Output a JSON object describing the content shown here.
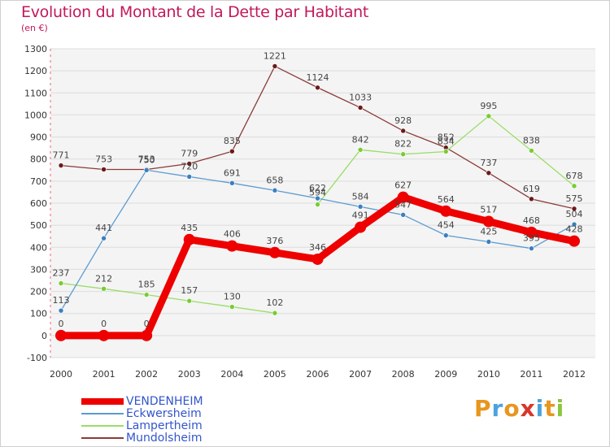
{
  "title": "Evolution du Montant de la Dette par Habitant",
  "subtitle": "(en €)",
  "logo": {
    "text": "Proxiti",
    "colors": [
      "#e8961e",
      "#4aa3df",
      "#e8961e",
      "#d9352a",
      "#4aa3df",
      "#e8961e",
      "#8cc63f"
    ]
  },
  "chart_data": {
    "type": "line",
    "title": "Evolution du Montant de la Dette par Habitant",
    "subtitle": "(en €)",
    "x": [
      "2000",
      "2001",
      "2002",
      "2003",
      "2004",
      "2005",
      "2006",
      "2007",
      "2008",
      "2009",
      "2010",
      "2011",
      "2012"
    ],
    "ylim": [
      -100,
      1300
    ],
    "yticks": [
      "-100",
      "0",
      "100",
      "200",
      "300",
      "400",
      "500",
      "600",
      "700",
      "800",
      "900",
      "1000",
      "1100",
      "1200",
      "1300"
    ],
    "grid": "horizontal",
    "legend": "bottom-left",
    "series": [
      {
        "name": "VENDENHEIM",
        "color": "#ee0000",
        "highlight": true,
        "values": [
          0,
          0,
          0,
          435,
          406,
          376,
          346,
          491,
          627,
          564,
          517,
          468,
          428
        ],
        "labels": [
          "0",
          "0",
          "0",
          "435",
          "406",
          "376",
          "346",
          "491",
          "627",
          "564",
          "517",
          "468",
          "428"
        ]
      },
      {
        "name": "Eckwersheim",
        "color": "#5c9bd1",
        "marker": "#3a7fc1",
        "values": [
          113,
          441,
          750,
          720,
          691,
          658,
          622,
          584,
          547,
          454,
          425,
          395,
          504
        ],
        "labels": [
          "113",
          "441",
          "750",
          "720",
          "691",
          "658",
          "622",
          "584",
          "547",
          "454",
          "425",
          "395",
          "504"
        ]
      },
      {
        "name": "Lampertheim",
        "color": "#99dd66",
        "marker": "#77cc33",
        "values": [
          237,
          212,
          185,
          157,
          130,
          102,
          null,
          842,
          822,
          834,
          995,
          838,
          678
        ],
        "labels": [
          "237",
          "212",
          "185",
          "157",
          "130",
          "102",
          "",
          "842",
          "822",
          "834",
          "995",
          "838",
          "678"
        ],
        "segment2": {
          "from": 594,
          "label": "594"
        }
      },
      {
        "name": "Mundolsheim",
        "color": "#8b3a3a",
        "marker": "#6b1a1a",
        "values": [
          771,
          753,
          753,
          779,
          835,
          1221,
          1124,
          1033,
          928,
          852,
          737,
          619,
          575
        ],
        "labels": [
          "771",
          "753",
          "753",
          "779",
          "835",
          "1221",
          "1124",
          "1033",
          "928",
          "852",
          "737",
          "619",
          "575"
        ]
      }
    ]
  }
}
